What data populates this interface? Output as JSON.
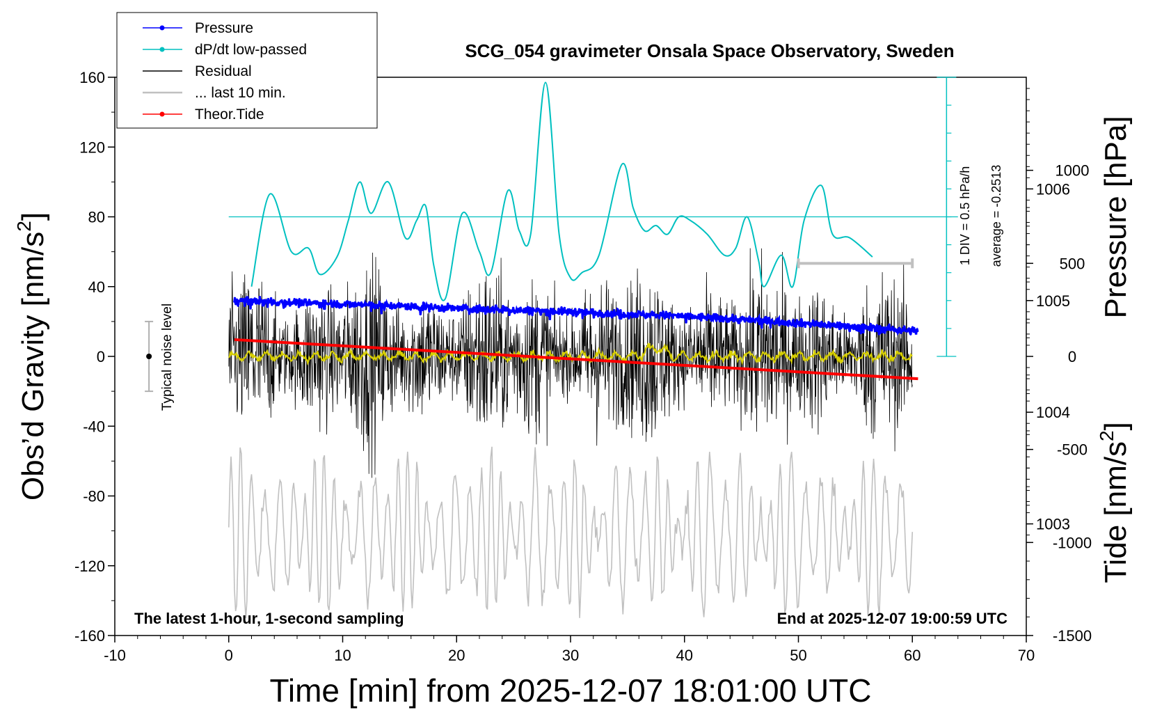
{
  "chart_data": {
    "type": "line",
    "title": "SCG_054 gravimeter Onsala Space Observatory, Sweden",
    "xlabel": "Time [min] from 2025-12-07 18:01:00 UTC",
    "ylabel_left": "Obs’d Gravity [nm/s",
    "ylabel_left_sup": "2",
    "ylabel_left_end": "]",
    "ylabel_right_pressure": "Pressure [hPa]",
    "ylabel_right_tide": "Tide [nm/s",
    "ylabel_right_tide_sup": "2",
    "ylabel_right_tide_end": "]",
    "xlim": [
      -10,
      70
    ],
    "ylim_gravity": [
      -160,
      160
    ],
    "ylim_pressure": [
      1002,
      1007
    ],
    "ylim_tide": [
      -1500,
      1500
    ],
    "x_ticks": [
      "-10",
      "0",
      "10",
      "20",
      "30",
      "40",
      "50",
      "60",
      "70"
    ],
    "gravity_ticks": [
      "-160",
      "-120",
      "-80",
      "-40",
      "0",
      "40",
      "80",
      "120",
      "160"
    ],
    "pressure_ticks": [
      "1003",
      "1004",
      "1005",
      "1006"
    ],
    "tide_ticks": [
      "-1500",
      "-1000",
      "-500",
      "0",
      "500",
      "1000"
    ],
    "legend_position": "top-left",
    "legend": [
      {
        "label": "Pressure",
        "color": "#0000ff",
        "marker": true
      },
      {
        "label": "dP/dt low-passed",
        "color": "#00c0c0",
        "marker": true
      },
      {
        "label": "Residual",
        "color": "#000000",
        "marker": false
      },
      {
        "label": "... last 10 min.",
        "color": "#c0c0c0",
        "marker": false
      },
      {
        "label": "Theor.Tide",
        "color": "#ff0000",
        "marker": true
      }
    ],
    "annotations": {
      "bottom_left": "The latest 1-hour, 1-second sampling",
      "bottom_right": "End at 2025-12-07 19:00:59 UTC",
      "noise_label": "Typical noise level",
      "div_label": "1 DIV = 0.5 hPa/h",
      "average_label": "average = -0.2513"
    },
    "noise_bar": {
      "x": -7,
      "y_center": 0,
      "y_low": -20,
      "y_high": 20
    },
    "dpdt_reference_level": 80,
    "pressure_series": {
      "x": [
        0,
        10,
        20,
        30,
        40,
        50,
        60
      ],
      "values": [
        1005.0,
        1004.97,
        1004.93,
        1004.9,
        1004.86,
        1004.8,
        1004.73
      ]
    },
    "tide_series": {
      "x": [
        0,
        60
      ],
      "values": [
        90,
        -120
      ]
    },
    "dpdt_series": {
      "x": [
        2,
        3.6,
        5.5,
        7,
        8,
        9.5,
        10.5,
        11.5,
        12.5,
        14,
        15.5,
        16.5,
        17.3,
        18,
        19,
        20.5,
        22,
        23,
        24.5,
        25.5,
        26.5,
        27.8,
        29,
        30,
        31,
        32.5,
        34.5,
        35.5,
        36.5,
        37.5,
        38.5,
        39.5,
        40.5,
        42,
        43.5,
        44.5,
        45.5,
        46.5,
        47,
        48.5,
        49.5,
        50.5,
        52,
        53,
        54.5,
        56.5
      ],
      "values": [
        40,
        93,
        60,
        62,
        47,
        57,
        78,
        100,
        82,
        100,
        68,
        78,
        86,
        52,
        33,
        82,
        60,
        48,
        95,
        72,
        70,
        157,
        70,
        45,
        48,
        58,
        110,
        85,
        72,
        75,
        70,
        80,
        78,
        70,
        58,
        62,
        80,
        55,
        40,
        58,
        40,
        78,
        98,
        70,
        68,
        57
      ]
    },
    "gravity_tick_values": [
      -160,
      -120,
      -80,
      -40,
      0,
      40,
      80,
      120,
      160
    ],
    "pressure_tick_values": [
      1003,
      1004,
      1005,
      1006
    ],
    "tide_tick_values": [
      -1500,
      -1000,
      -500,
      0,
      500,
      1000
    ],
    "x_tick_values": [
      -10,
      0,
      10,
      20,
      30,
      40,
      50,
      60,
      70
    ],
    "last10_bar": {
      "x_start": 50,
      "x_end": 60,
      "tide_level": 500
    }
  }
}
